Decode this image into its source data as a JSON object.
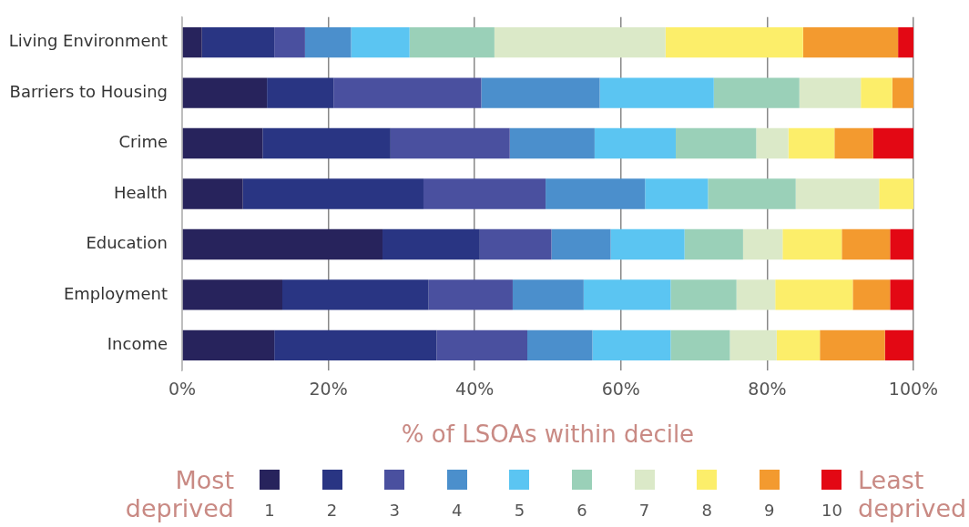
{
  "chart_data": {
    "type": "bar",
    "orientation": "horizontal",
    "stacked": true,
    "categories": [
      "Living Environment",
      "Barriers to Housing",
      "Crime",
      "Health",
      "Education",
      "Employment",
      "Income"
    ],
    "series": [
      {
        "name": "1",
        "color": "#27235c",
        "values": [
          2.7,
          11.6,
          11.0,
          8.3,
          27.4,
          13.7,
          12.6
        ]
      },
      {
        "name": "2",
        "color": "#293583",
        "values": [
          9.9,
          9.1,
          17.5,
          24.7,
          13.3,
          20.0,
          22.2
        ]
      },
      {
        "name": "3",
        "color": "#4a509f",
        "values": [
          4.2,
          20.2,
          16.3,
          16.7,
          9.8,
          11.5,
          12.4
        ]
      },
      {
        "name": "4",
        "color": "#4b8fcc",
        "values": [
          6.3,
          16.2,
          11.6,
          13.6,
          8.1,
          9.7,
          8.9
        ]
      },
      {
        "name": "5",
        "color": "#5bc5f2",
        "values": [
          8.0,
          15.6,
          11.1,
          8.6,
          10.1,
          11.9,
          10.7
        ]
      },
      {
        "name": "6",
        "color": "#9ad0b8",
        "values": [
          11.6,
          11.7,
          11.0,
          12.0,
          8.0,
          9.0,
          8.1
        ]
      },
      {
        "name": "7",
        "color": "#dbe9c8",
        "values": [
          23.4,
          8.4,
          4.4,
          11.4,
          5.4,
          5.3,
          6.4
        ]
      },
      {
        "name": "8",
        "color": "#fcee6a",
        "values": [
          18.8,
          4.3,
          6.3,
          4.7,
          8.1,
          10.6,
          5.9
        ]
      },
      {
        "name": "9",
        "color": "#f39a2f",
        "values": [
          13.0,
          2.9,
          5.3,
          0,
          6.6,
          5.1,
          8.9
        ]
      },
      {
        "name": "10",
        "color": "#e30814",
        "values": [
          2.1,
          0,
          5.5,
          0,
          3.2,
          3.2,
          3.9
        ]
      }
    ],
    "xlim": [
      0,
      100
    ],
    "xticks": [
      {
        "value": 0,
        "label": "0%"
      },
      {
        "value": 20,
        "label": "20%"
      },
      {
        "value": 40,
        "label": "40%"
      },
      {
        "value": 60,
        "label": "60%"
      },
      {
        "value": 80,
        "label": "80%"
      },
      {
        "value": 100,
        "label": "100%"
      }
    ],
    "xlabel": "% of LSOAs within decile",
    "grid": "x",
    "legend": "bottom",
    "annotations": [
      "Most deprived",
      "Least deprived"
    ]
  }
}
